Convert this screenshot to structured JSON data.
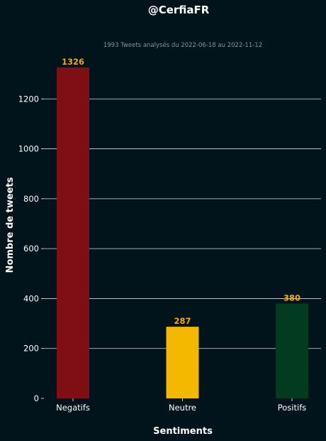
{
  "chart_data": {
    "type": "bar",
    "title": "@CerfiaFR",
    "subtitle": "1993 Tweets analysés du 2022-06-18 au 2022-11-12",
    "xlabel": "Sentiments",
    "ylabel": "Nombre de tweets",
    "categories": [
      "Negatifs",
      "Neutre",
      "Positifs"
    ],
    "values": [
      1326,
      287,
      380
    ],
    "data_labels": [
      "1326",
      "287",
      "380"
    ],
    "colors": [
      "#800e15",
      "#f5b800",
      "#023b1f"
    ],
    "ylim": [
      0,
      1326
    ],
    "yticks": [
      0,
      200,
      400,
      600,
      800,
      1000,
      1200
    ],
    "ytick_labels": [
      "0",
      "200",
      "400",
      "600",
      "800",
      "1000",
      "1200"
    ],
    "grid": "horizontal",
    "label_color": "#f5a60e",
    "background": "#01131b"
  }
}
